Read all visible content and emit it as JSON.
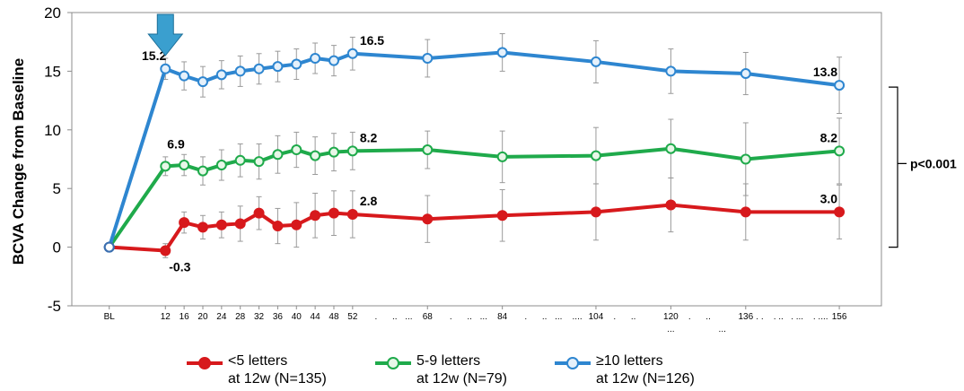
{
  "chart_data": {
    "type": "line",
    "ylabel": "BCVA Change from Baseline",
    "ylim": [
      -5,
      20
    ],
    "yticks": [
      "-5",
      "0",
      "5",
      "10",
      "15",
      "20"
    ],
    "x": [
      "BL",
      "12",
      "16",
      "20",
      "24",
      "28",
      "32",
      "36",
      "40",
      "44",
      "48",
      "52",
      "68",
      "84",
      "104",
      "120",
      "136",
      "156"
    ],
    "x_numeric": [
      0,
      12,
      16,
      20,
      24,
      28,
      32,
      36,
      40,
      44,
      48,
      52,
      68,
      84,
      104,
      120,
      136,
      156
    ],
    "series": [
      {
        "key": "lt5",
        "color": "#d7191c",
        "fill": "#d7191c",
        "legend_line1": "<5 letters",
        "legend_line2": "at 12w (N=135)",
        "values": [
          0,
          -0.3,
          2.1,
          1.7,
          1.9,
          2.0,
          2.9,
          1.8,
          1.9,
          2.7,
          2.9,
          2.8,
          2.4,
          2.7,
          3.0,
          3.6,
          3.0,
          3.0
        ],
        "err": [
          0,
          0.6,
          0.9,
          1.0,
          1.1,
          1.5,
          1.4,
          1.5,
          1.9,
          1.9,
          1.9,
          2.0,
          2.0,
          2.2,
          2.4,
          2.3,
          2.4,
          2.3
        ]
      },
      {
        "key": "mid",
        "color": "#1faa4b",
        "fill": "#e8f7e8",
        "legend_line1": "5-9 letters",
        "legend_line2": "at 12w (N=79)",
        "values": [
          0,
          6.9,
          7.0,
          6.5,
          7.0,
          7.4,
          7.3,
          7.9,
          8.3,
          7.8,
          8.1,
          8.2,
          8.3,
          7.7,
          7.8,
          8.4,
          7.5,
          8.2
        ],
        "err": [
          0,
          0.8,
          0.9,
          1.2,
          1.3,
          1.4,
          1.5,
          1.6,
          1.5,
          1.6,
          1.6,
          1.6,
          1.6,
          2.2,
          2.4,
          2.5,
          3.1,
          2.8
        ]
      },
      {
        "key": "ge10",
        "color": "#2e86d0",
        "fill": "#e6f1fb",
        "legend_line1": "≥10 letters",
        "legend_line2": "at 12w (N=126)",
        "values": [
          0,
          15.2,
          14.6,
          14.1,
          14.7,
          15.0,
          15.2,
          15.4,
          15.6,
          16.1,
          15.9,
          16.5,
          16.1,
          16.6,
          15.8,
          15.0,
          14.8,
          13.8
        ],
        "err": [
          0,
          0.9,
          1.2,
          1.3,
          1.2,
          1.3,
          1.3,
          1.3,
          1.3,
          1.3,
          1.3,
          1.4,
          1.6,
          1.6,
          1.8,
          1.9,
          1.8,
          2.4
        ]
      }
    ],
    "annotations": [
      {
        "text": "15.2",
        "series": 2,
        "index": 1,
        "pos": "left"
      },
      {
        "text": "16.5",
        "series": 2,
        "index": 11,
        "pos": "right"
      },
      {
        "text": "13.8",
        "series": 2,
        "index": 17,
        "pos": "left"
      },
      {
        "text": "6.9",
        "series": 1,
        "index": 1,
        "pos": "up"
      },
      {
        "text": "8.2",
        "series": 1,
        "index": 11,
        "pos": "right"
      },
      {
        "text": "8.2",
        "series": 1,
        "index": 17,
        "pos": "left"
      },
      {
        "text": "2.8",
        "series": 0,
        "index": 11,
        "pos": "right"
      },
      {
        "text": "3.0",
        "series": 0,
        "index": 17,
        "pos": "left"
      },
      {
        "text": "-0.3",
        "series": 0,
        "index": 1,
        "pos": "down"
      }
    ],
    "x_dots": [
      {
        "text": ".",
        "at": 57
      },
      {
        "text": "..",
        "at": 61
      },
      {
        "text": "...",
        "at": 64
      },
      {
        "text": ".",
        "at": 73
      },
      {
        "text": "..",
        "at": 77
      },
      {
        "text": "...",
        "at": 80
      },
      {
        "text": ".",
        "at": 89
      },
      {
        "text": "..",
        "at": 93
      },
      {
        "text": "...",
        "at": 96
      },
      {
        "text": "....",
        "at": 100
      },
      {
        "text": ".",
        "at": 108
      },
      {
        "text": "..",
        "at": 112
      },
      {
        "text": "...",
        "at": 120,
        "row": 2
      },
      {
        "text": ".",
        "at": 124
      },
      {
        "text": "..",
        "at": 128
      },
      {
        "text": "...",
        "at": 131,
        "row": 2
      },
      {
        "text": ". .",
        "at": 139
      },
      {
        "text": ". ..",
        "at": 143
      },
      {
        "text": ". ...",
        "at": 147
      },
      {
        "text": ". ....",
        "at": 152
      }
    ],
    "significance": "p<0.001",
    "marker_arrow_at": 12,
    "grid": false,
    "legend_position": "bottom"
  }
}
